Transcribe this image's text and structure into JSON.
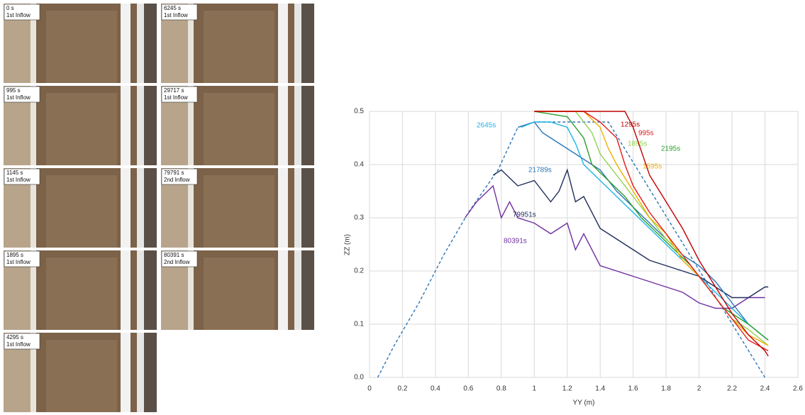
{
  "photos": [
    {
      "time": "0 s",
      "inflow": "1st Inflow"
    },
    {
      "time": "995 s",
      "inflow": "1st Inflow"
    },
    {
      "time": "1145 s",
      "inflow": "1st Inflow"
    },
    {
      "time": "1895 s",
      "inflow": "1st Inflow"
    },
    {
      "time": "4295 s",
      "inflow": "1st Inflow"
    },
    {
      "time": "6245 s",
      "inflow": "1st Inflow"
    },
    {
      "time": "29717 s",
      "inflow": "1st Inflow"
    },
    {
      "time": "79791 s",
      "inflow": "2nd Inflow"
    },
    {
      "time": "80391 s",
      "inflow": "2nd Inflow"
    }
  ],
  "chart_data": {
    "type": "line",
    "x_label": "YY (m)",
    "y_label": "ZZ (m)",
    "xlim": [
      0,
      2.6
    ],
    "ylim": [
      0,
      0.5
    ],
    "xticks": [
      0,
      0.2,
      0.4,
      0.6,
      0.8,
      1,
      1.2,
      1.4,
      1.6,
      1.8,
      2,
      2.2,
      2.4,
      2.6
    ],
    "yticks": [
      {
        "value": 0,
        "label": "0.0"
      },
      0.1,
      0.2,
      0.3,
      0.4,
      0.5
    ],
    "grid": true,
    "series": [
      {
        "color": "#2e75b6",
        "style": "dashed",
        "x": [
          0.05,
          0.15,
          0.3,
          0.35,
          0.45,
          0.6,
          0.78,
          0.9,
          1.0,
          1.45,
          2.4
        ],
        "values": [
          0,
          0.06,
          0.14,
          0.17,
          0.23,
          0.31,
          0.39,
          0.47,
          0.48,
          0.48,
          0
        ]
      },
      {
        "name": "80391s",
        "color": "#7030a0",
        "x": [
          0.58,
          0.65,
          0.75,
          0.8,
          0.85,
          0.9,
          1.0,
          1.1,
          1.2,
          1.25,
          1.3,
          1.4,
          1.5,
          1.6,
          1.7,
          1.8,
          1.9,
          2.0,
          2.1,
          2.2,
          2.3,
          2.4
        ],
        "values": [
          0.3,
          0.33,
          0.36,
          0.3,
          0.33,
          0.3,
          0.29,
          0.27,
          0.29,
          0.24,
          0.27,
          0.21,
          0.2,
          0.19,
          0.18,
          0.17,
          0.16,
          0.14,
          0.13,
          0.13,
          0.15,
          0.15
        ]
      },
      {
        "name": "79951s",
        "color": "#1f2d5c",
        "x": [
          0.75,
          0.8,
          0.9,
          1.0,
          1.1,
          1.15,
          1.2,
          1.25,
          1.3,
          1.4,
          1.5,
          1.6,
          1.7,
          1.8,
          1.9,
          2.0,
          2.1,
          2.2,
          2.3,
          2.4,
          2.42
        ],
        "values": [
          0.38,
          0.39,
          0.36,
          0.37,
          0.33,
          0.35,
          0.39,
          0.33,
          0.34,
          0.28,
          0.26,
          0.24,
          0.22,
          0.21,
          0.2,
          0.19,
          0.17,
          0.15,
          0.15,
          0.17,
          0.17
        ]
      },
      {
        "name": "21789s",
        "color": "#2e75b6",
        "x": [
          0.9,
          1.0,
          1.05,
          1.1,
          1.2,
          1.3,
          1.4,
          1.5,
          1.6,
          1.7,
          1.8,
          1.9,
          2.0,
          2.1,
          2.2,
          2.3,
          2.42
        ],
        "values": [
          0.47,
          0.48,
          0.46,
          0.45,
          0.43,
          0.41,
          0.39,
          0.35,
          0.32,
          0.29,
          0.26,
          0.23,
          0.21,
          0.18,
          0.14,
          0.1,
          0.07
        ]
      },
      {
        "name": "2645s",
        "color": "#1fb4e6",
        "x": [
          0.92,
          1.0,
          1.1,
          1.2,
          1.25,
          1.3,
          1.4,
          1.5,
          1.6,
          1.7,
          1.8,
          1.9,
          2.0,
          2.1,
          2.2,
          2.3,
          2.42
        ],
        "values": [
          0.47,
          0.48,
          0.48,
          0.47,
          0.44,
          0.4,
          0.37,
          0.34,
          0.31,
          0.28,
          0.25,
          0.22,
          0.19,
          0.16,
          0.13,
          0.1,
          0.07
        ]
      },
      {
        "name": "2195s",
        "color": "#2ca02c",
        "x": [
          1.0,
          1.2,
          1.3,
          1.35,
          1.45,
          1.55,
          1.65,
          1.75,
          1.85,
          1.95,
          2.05,
          2.15,
          2.3,
          2.42
        ],
        "values": [
          0.5,
          0.49,
          0.45,
          0.4,
          0.37,
          0.34,
          0.3,
          0.27,
          0.24,
          0.21,
          0.17,
          0.13,
          0.1,
          0.07
        ]
      },
      {
        "name": "1895s",
        "color": "#92d050",
        "x": [
          1.0,
          1.25,
          1.35,
          1.4,
          1.5,
          1.6,
          1.7,
          1.8,
          1.9,
          2.0,
          2.1,
          2.2,
          2.3,
          2.42
        ],
        "values": [
          0.5,
          0.5,
          0.46,
          0.42,
          0.38,
          0.34,
          0.3,
          0.26,
          0.23,
          0.19,
          0.15,
          0.11,
          0.09,
          0.06
        ]
      },
      {
        "name": "1595s",
        "color": "#f0b000",
        "x": [
          1.1,
          1.3,
          1.4,
          1.45,
          1.5,
          1.6,
          1.7,
          1.8,
          1.9,
          2.0,
          2.1,
          2.2,
          2.3,
          2.42
        ],
        "values": [
          0.5,
          0.5,
          0.47,
          0.43,
          0.4,
          0.35,
          0.3,
          0.27,
          0.22,
          0.19,
          0.15,
          0.11,
          0.08,
          0.06
        ]
      },
      {
        "name": "995s",
        "color": "#e31a1c",
        "x": [
          1.0,
          1.3,
          1.4,
          1.5,
          1.55,
          1.6,
          1.7,
          1.8,
          1.9,
          2.0,
          2.1,
          2.2,
          2.3,
          2.42
        ],
        "values": [
          0.5,
          0.5,
          0.48,
          0.45,
          0.4,
          0.36,
          0.31,
          0.27,
          0.23,
          0.19,
          0.15,
          0.11,
          0.07,
          0.05
        ]
      },
      {
        "name": "1295s",
        "color": "#c00000",
        "x": [
          1.0,
          1.2,
          1.4,
          1.55,
          1.6,
          1.7,
          1.8,
          1.9,
          2.0,
          2.1,
          2.2,
          2.3,
          2.4,
          2.42
        ],
        "values": [
          0.5,
          0.5,
          0.5,
          0.5,
          0.47,
          0.38,
          0.33,
          0.28,
          0.22,
          0.17,
          0.12,
          0.08,
          0.05,
          0.04
        ]
      }
    ]
  }
}
